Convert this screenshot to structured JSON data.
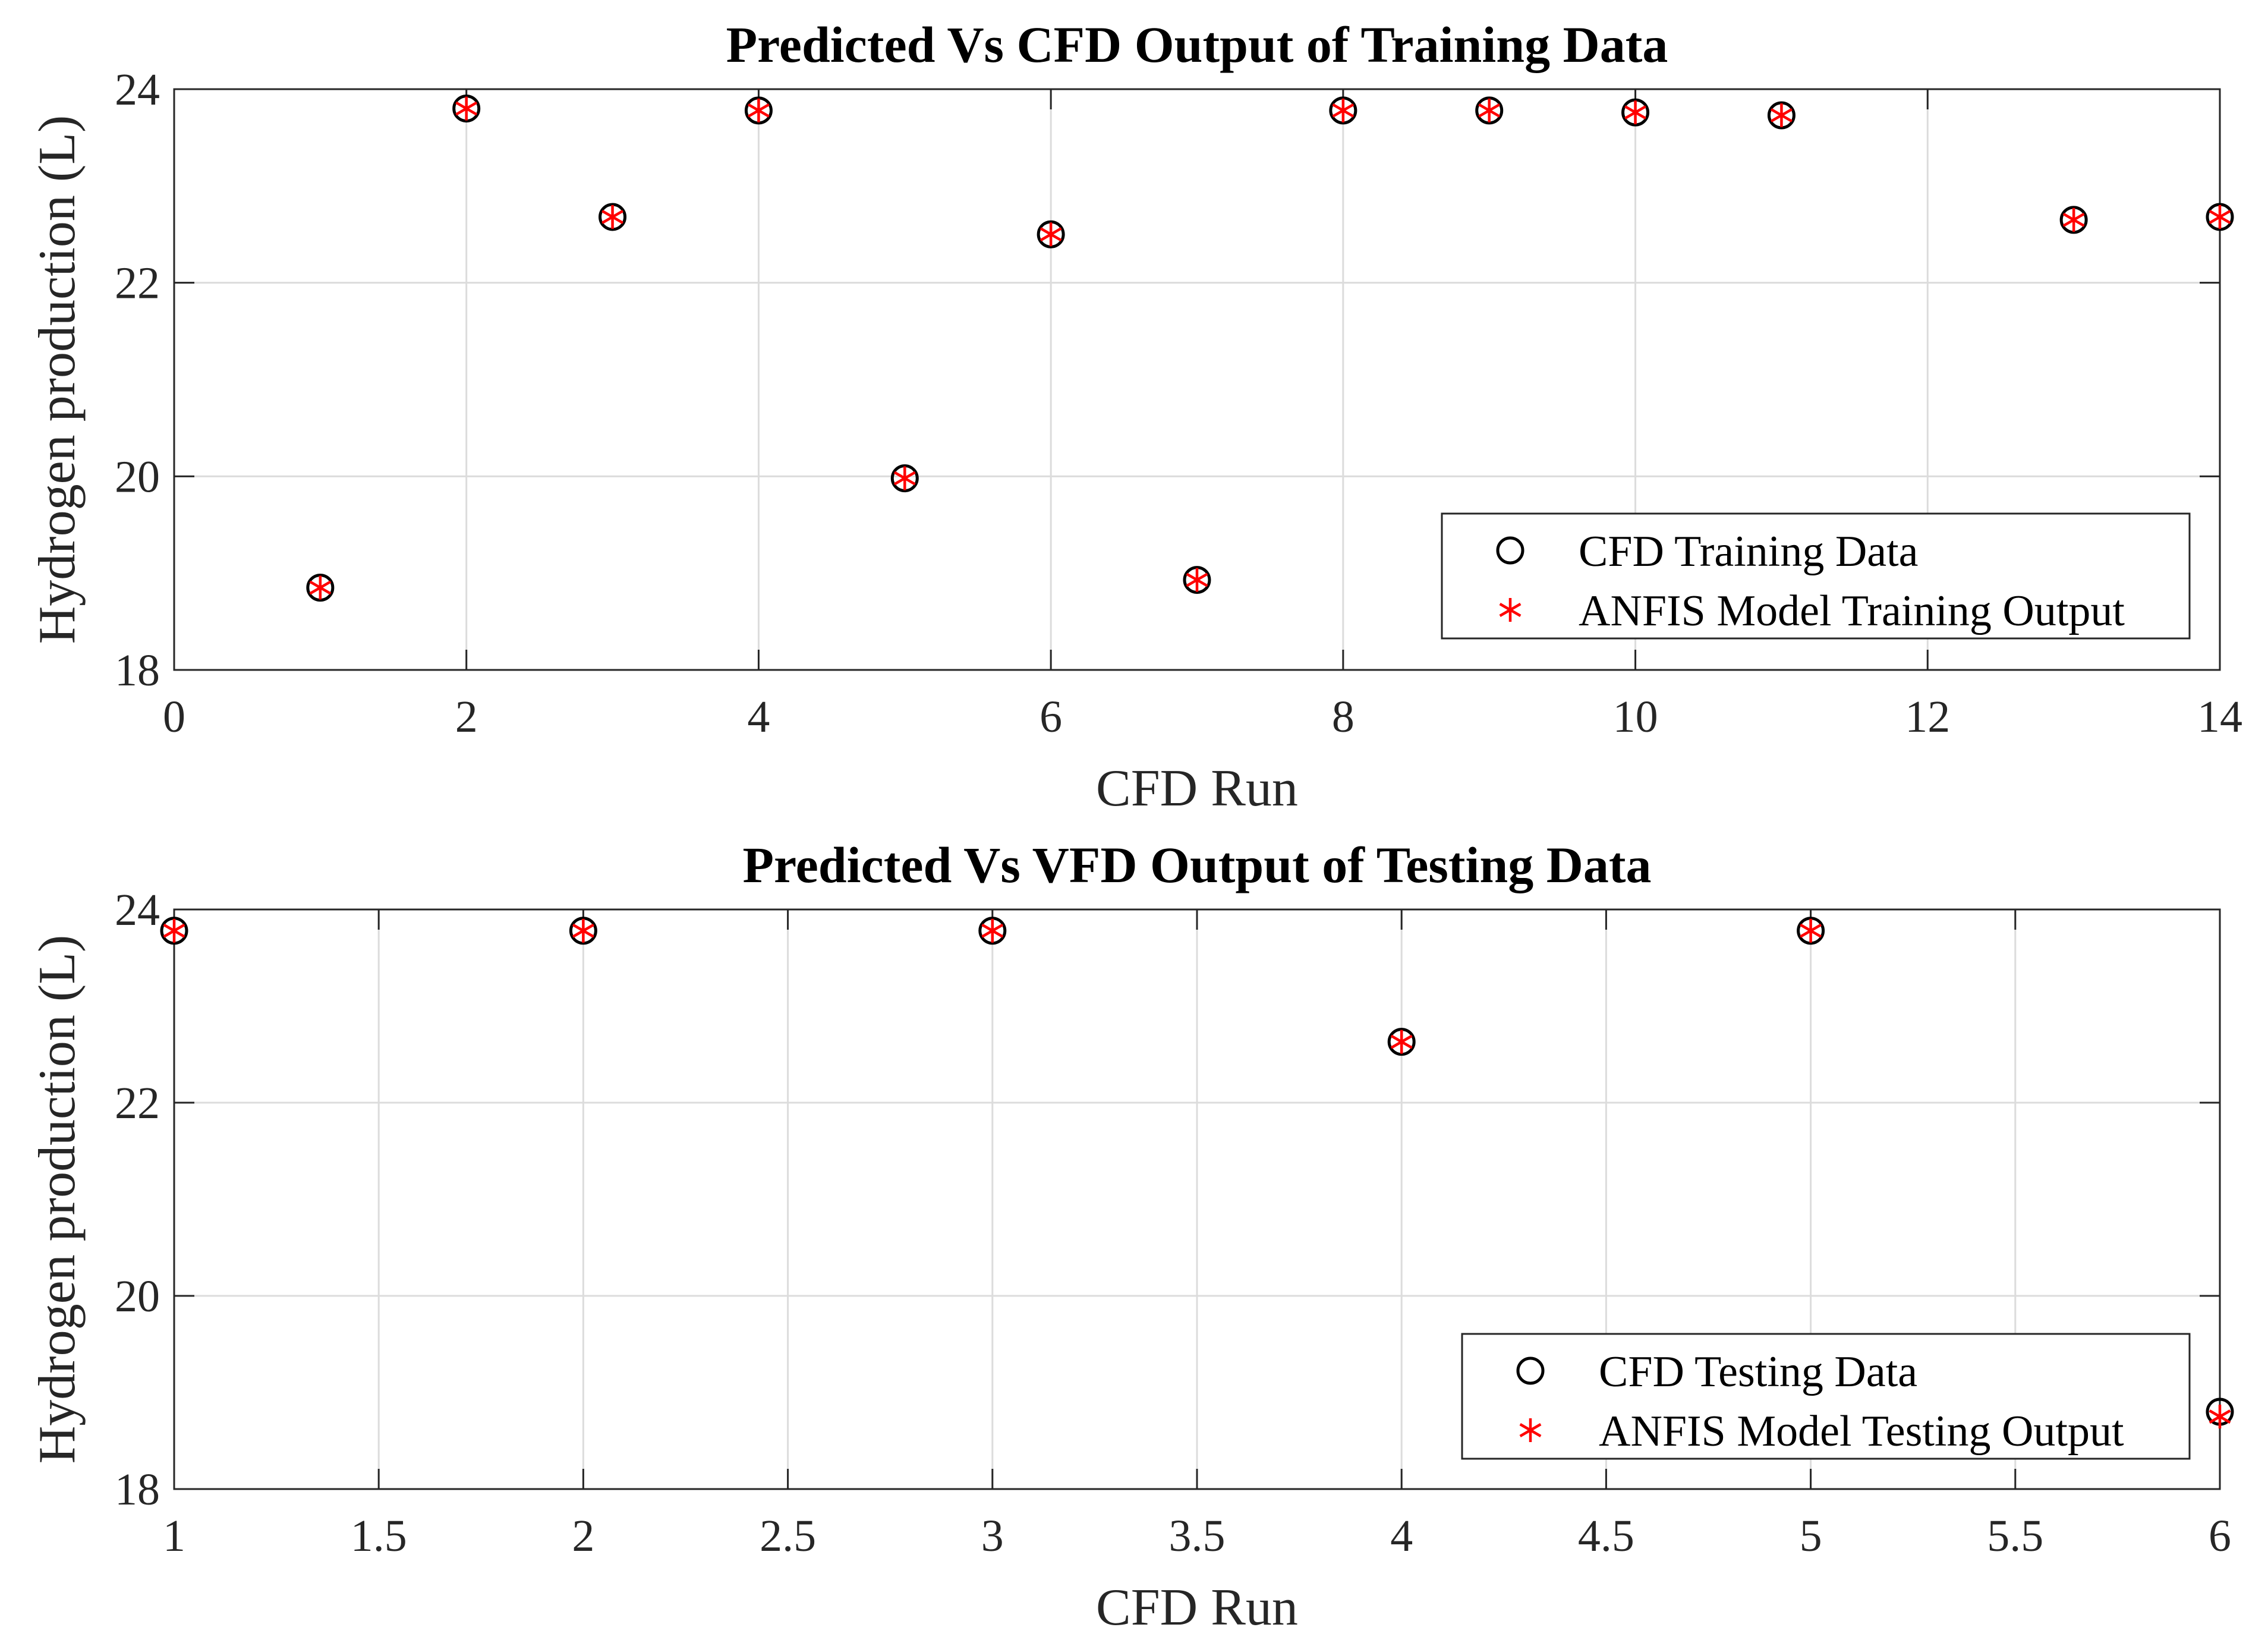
{
  "chart_data": [
    {
      "type": "scatter",
      "title": "Predicted Vs CFD Output of Training Data",
      "xlabel": "CFD Run",
      "ylabel": "Hydrogen production (L)",
      "xlim": [
        0,
        14
      ],
      "ylim": [
        18,
        24
      ],
      "grid": true,
      "legend_position": "bottom-right",
      "xticks": [
        0,
        2,
        4,
        6,
        8,
        10,
        12,
        14
      ],
      "xtick_labels": [
        "0",
        "2",
        "4",
        "6",
        "8",
        "10",
        "12",
        "14"
      ],
      "yticks": [
        18,
        20,
        22,
        24
      ],
      "ytick_labels": [
        "18",
        "20",
        "22",
        "24"
      ],
      "series": [
        {
          "name": "CFD Training Data",
          "marker": "circle",
          "color": "#000000",
          "x": [
            1,
            2,
            3,
            4,
            5,
            6,
            7,
            8,
            9,
            10,
            11,
            13,
            14
          ],
          "values": [
            18.85,
            23.8,
            22.68,
            23.78,
            19.98,
            22.5,
            18.93,
            23.78,
            23.78,
            23.76,
            23.73,
            22.65,
            22.68
          ]
        },
        {
          "name": "ANFIS Model Training Output",
          "marker": "asterisk",
          "color": "#ff0000",
          "x": [
            1,
            2,
            3,
            4,
            5,
            6,
            7,
            8,
            9,
            10,
            11,
            13,
            14
          ],
          "values": [
            18.85,
            23.8,
            22.68,
            23.78,
            19.98,
            22.5,
            18.93,
            23.78,
            23.78,
            23.76,
            23.73,
            22.65,
            22.68
          ]
        }
      ]
    },
    {
      "type": "scatter",
      "title": "Predicted Vs VFD Output of Testing Data",
      "xlabel": "CFD Run",
      "ylabel": "Hydrogen production (L)",
      "xlim": [
        1,
        6
      ],
      "ylim": [
        18,
        24
      ],
      "grid": true,
      "legend_position": "bottom-right",
      "xticks": [
        1,
        1.5,
        2,
        2.5,
        3,
        3.5,
        4,
        4.5,
        5,
        5.5,
        6
      ],
      "xtick_labels": [
        "1",
        "1.5",
        "2",
        "2.5",
        "3",
        "3.5",
        "4",
        "4.5",
        "5",
        "5.5",
        "6"
      ],
      "yticks": [
        18,
        20,
        22,
        24
      ],
      "ytick_labels": [
        "18",
        "20",
        "22",
        "24"
      ],
      "series": [
        {
          "name": "CFD Testing Data",
          "marker": "circle",
          "color": "#000000",
          "x": [
            1,
            2,
            3,
            4,
            5,
            6
          ],
          "values": [
            23.78,
            23.78,
            23.78,
            22.63,
            23.78,
            18.8
          ]
        },
        {
          "name": "ANFIS Model Testing Output",
          "marker": "asterisk",
          "color": "#ff0000",
          "x": [
            1,
            2,
            3,
            4,
            5,
            6
          ],
          "values": [
            23.78,
            23.78,
            23.78,
            22.63,
            23.78,
            18.75
          ]
        }
      ]
    }
  ]
}
